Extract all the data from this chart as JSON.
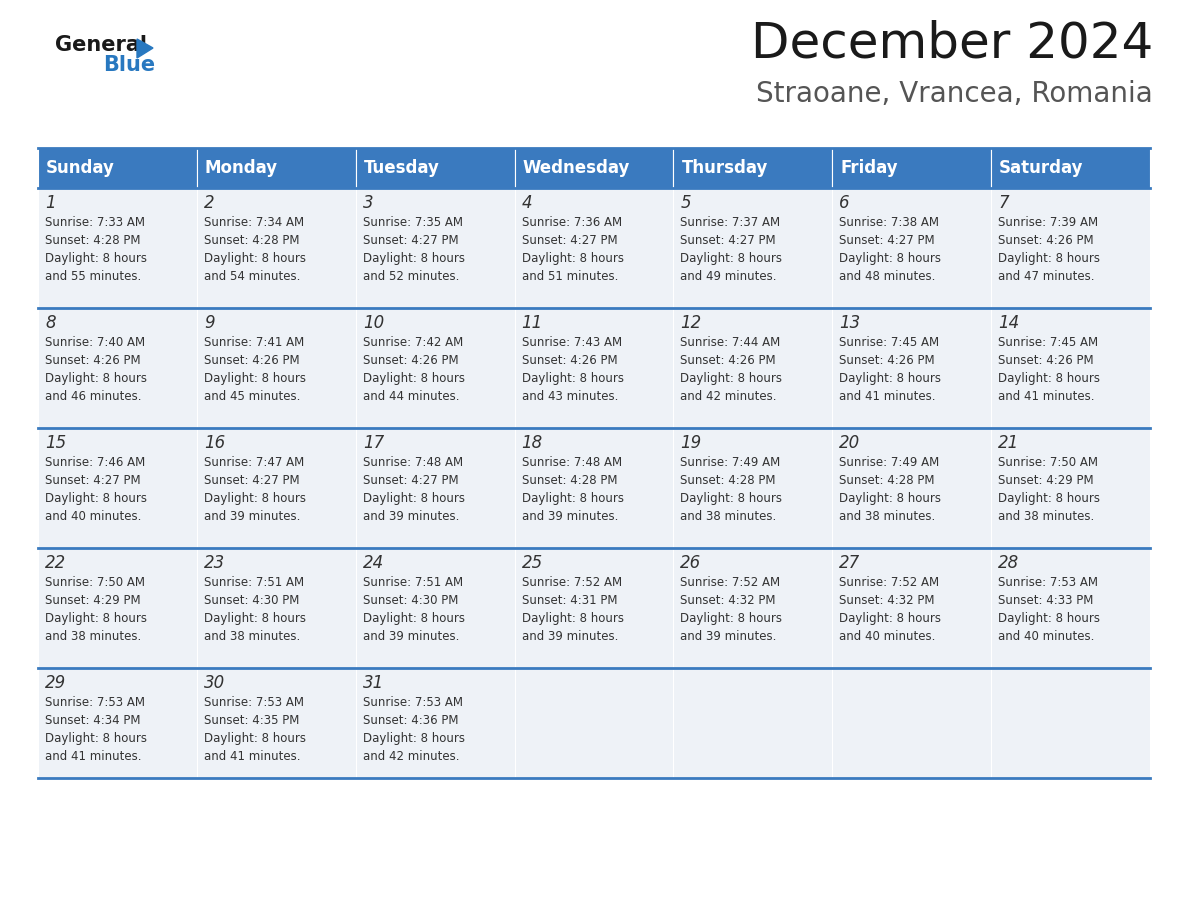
{
  "title": "December 2024",
  "subtitle": "Straoane, Vrancea, Romania",
  "header_color": "#3a7abf",
  "header_text_color": "#ffffff",
  "cell_bg_color": "#eef2f7",
  "border_color": "#3a7abf",
  "days_of_week": [
    "Sunday",
    "Monday",
    "Tuesday",
    "Wednesday",
    "Thursday",
    "Friday",
    "Saturday"
  ],
  "calendar_data": [
    [
      {
        "day": 1,
        "sunrise": "7:33 AM",
        "sunset": "4:28 PM",
        "daylight": "8 hours and 55 minutes."
      },
      {
        "day": 2,
        "sunrise": "7:34 AM",
        "sunset": "4:28 PM",
        "daylight": "8 hours and 54 minutes."
      },
      {
        "day": 3,
        "sunrise": "7:35 AM",
        "sunset": "4:27 PM",
        "daylight": "8 hours and 52 minutes."
      },
      {
        "day": 4,
        "sunrise": "7:36 AM",
        "sunset": "4:27 PM",
        "daylight": "8 hours and 51 minutes."
      },
      {
        "day": 5,
        "sunrise": "7:37 AM",
        "sunset": "4:27 PM",
        "daylight": "8 hours and 49 minutes."
      },
      {
        "day": 6,
        "sunrise": "7:38 AM",
        "sunset": "4:27 PM",
        "daylight": "8 hours and 48 minutes."
      },
      {
        "day": 7,
        "sunrise": "7:39 AM",
        "sunset": "4:26 PM",
        "daylight": "8 hours and 47 minutes."
      }
    ],
    [
      {
        "day": 8,
        "sunrise": "7:40 AM",
        "sunset": "4:26 PM",
        "daylight": "8 hours and 46 minutes."
      },
      {
        "day": 9,
        "sunrise": "7:41 AM",
        "sunset": "4:26 PM",
        "daylight": "8 hours and 45 minutes."
      },
      {
        "day": 10,
        "sunrise": "7:42 AM",
        "sunset": "4:26 PM",
        "daylight": "8 hours and 44 minutes."
      },
      {
        "day": 11,
        "sunrise": "7:43 AM",
        "sunset": "4:26 PM",
        "daylight": "8 hours and 43 minutes."
      },
      {
        "day": 12,
        "sunrise": "7:44 AM",
        "sunset": "4:26 PM",
        "daylight": "8 hours and 42 minutes."
      },
      {
        "day": 13,
        "sunrise": "7:45 AM",
        "sunset": "4:26 PM",
        "daylight": "8 hours and 41 minutes."
      },
      {
        "day": 14,
        "sunrise": "7:45 AM",
        "sunset": "4:26 PM",
        "daylight": "8 hours and 41 minutes."
      }
    ],
    [
      {
        "day": 15,
        "sunrise": "7:46 AM",
        "sunset": "4:27 PM",
        "daylight": "8 hours and 40 minutes."
      },
      {
        "day": 16,
        "sunrise": "7:47 AM",
        "sunset": "4:27 PM",
        "daylight": "8 hours and 39 minutes."
      },
      {
        "day": 17,
        "sunrise": "7:48 AM",
        "sunset": "4:27 PM",
        "daylight": "8 hours and 39 minutes."
      },
      {
        "day": 18,
        "sunrise": "7:48 AM",
        "sunset": "4:28 PM",
        "daylight": "8 hours and 39 minutes."
      },
      {
        "day": 19,
        "sunrise": "7:49 AM",
        "sunset": "4:28 PM",
        "daylight": "8 hours and 38 minutes."
      },
      {
        "day": 20,
        "sunrise": "7:49 AM",
        "sunset": "4:28 PM",
        "daylight": "8 hours and 38 minutes."
      },
      {
        "day": 21,
        "sunrise": "7:50 AM",
        "sunset": "4:29 PM",
        "daylight": "8 hours and 38 minutes."
      }
    ],
    [
      {
        "day": 22,
        "sunrise": "7:50 AM",
        "sunset": "4:29 PM",
        "daylight": "8 hours and 38 minutes."
      },
      {
        "day": 23,
        "sunrise": "7:51 AM",
        "sunset": "4:30 PM",
        "daylight": "8 hours and 38 minutes."
      },
      {
        "day": 24,
        "sunrise": "7:51 AM",
        "sunset": "4:30 PM",
        "daylight": "8 hours and 39 minutes."
      },
      {
        "day": 25,
        "sunrise": "7:52 AM",
        "sunset": "4:31 PM",
        "daylight": "8 hours and 39 minutes."
      },
      {
        "day": 26,
        "sunrise": "7:52 AM",
        "sunset": "4:32 PM",
        "daylight": "8 hours and 39 minutes."
      },
      {
        "day": 27,
        "sunrise": "7:52 AM",
        "sunset": "4:32 PM",
        "daylight": "8 hours and 40 minutes."
      },
      {
        "day": 28,
        "sunrise": "7:53 AM",
        "sunset": "4:33 PM",
        "daylight": "8 hours and 40 minutes."
      }
    ],
    [
      {
        "day": 29,
        "sunrise": "7:53 AM",
        "sunset": "4:34 PM",
        "daylight": "8 hours and 41 minutes."
      },
      {
        "day": 30,
        "sunrise": "7:53 AM",
        "sunset": "4:35 PM",
        "daylight": "8 hours and 41 minutes."
      },
      {
        "day": 31,
        "sunrise": "7:53 AM",
        "sunset": "4:36 PM",
        "daylight": "8 hours and 42 minutes."
      },
      null,
      null,
      null,
      null
    ]
  ],
  "background_color": "#ffffff",
  "fig_width": 11.88,
  "fig_height": 9.18,
  "dpi": 100
}
